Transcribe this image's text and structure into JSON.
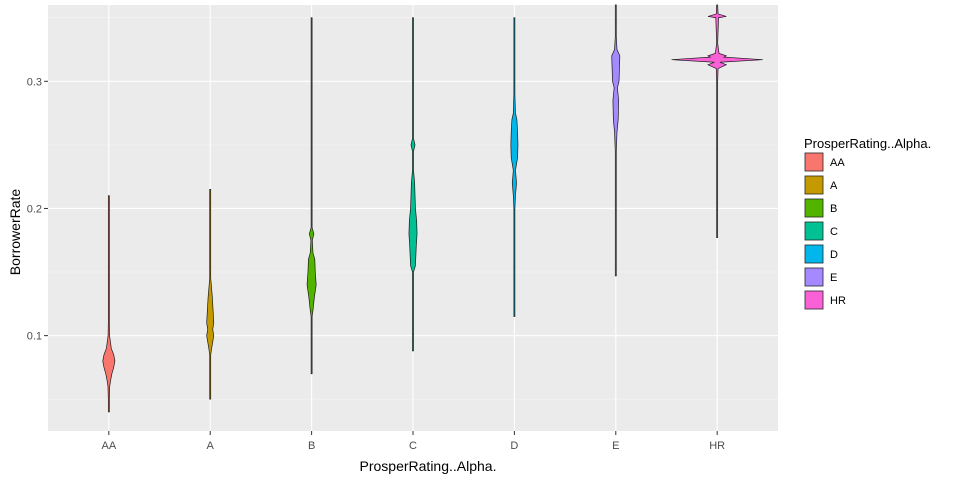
{
  "chart_data": {
    "type": "violin",
    "xlabel": "ProsperRating..Alpha.",
    "ylabel": "BorrowerRate",
    "ylim": [
      0.025,
      0.36
    ],
    "yticks": [
      0.1,
      0.2,
      0.3
    ],
    "ytick_labels": [
      "0.1",
      "0.2",
      "0.3"
    ],
    "grid": true,
    "legend": {
      "title": "ProsperRating..Alpha.",
      "position": "right"
    },
    "categories": [
      "AA",
      "A",
      "B",
      "C",
      "D",
      "E",
      "HR"
    ],
    "series": [
      {
        "name": "AA",
        "color": "#F8766D",
        "min": 0.04,
        "max": 0.21,
        "width": 0.12,
        "density": [
          [
            0.04,
            0.0
          ],
          [
            0.05,
            0.06
          ],
          [
            0.06,
            0.14
          ],
          [
            0.065,
            0.3
          ],
          [
            0.07,
            0.5
          ],
          [
            0.075,
            0.8
          ],
          [
            0.08,
            1.0
          ],
          [
            0.085,
            0.8
          ],
          [
            0.09,
            0.4
          ],
          [
            0.1,
            0.12
          ],
          [
            0.11,
            0.04
          ],
          [
            0.125,
            0.02
          ],
          [
            0.21,
            0.0
          ]
        ]
      },
      {
        "name": "A",
        "color": "#C49A00",
        "min": 0.05,
        "max": 0.215,
        "width": 0.07,
        "density": [
          [
            0.05,
            0.0
          ],
          [
            0.085,
            0.04
          ],
          [
            0.09,
            0.4
          ],
          [
            0.1,
            1.0
          ],
          [
            0.105,
            0.7
          ],
          [
            0.11,
            1.0
          ],
          [
            0.12,
            0.8
          ],
          [
            0.13,
            0.6
          ],
          [
            0.14,
            0.3
          ],
          [
            0.145,
            0.05
          ],
          [
            0.215,
            0.0
          ]
        ]
      },
      {
        "name": "B",
        "color": "#53B400",
        "min": 0.07,
        "max": 0.35,
        "width": 0.09,
        "density": [
          [
            0.07,
            0.0
          ],
          [
            0.115,
            0.05
          ],
          [
            0.12,
            0.3
          ],
          [
            0.13,
            0.6
          ],
          [
            0.14,
            1.0
          ],
          [
            0.15,
            0.8
          ],
          [
            0.16,
            0.7
          ],
          [
            0.165,
            0.3
          ],
          [
            0.175,
            0.15
          ],
          [
            0.18,
            0.5
          ],
          [
            0.185,
            0.1
          ],
          [
            0.2,
            0.05
          ],
          [
            0.215,
            0.02
          ],
          [
            0.35,
            0.0
          ]
        ]
      },
      {
        "name": "C",
        "color": "#00C094",
        "min": 0.088,
        "max": 0.35,
        "width": 0.08,
        "density": [
          [
            0.088,
            0.0
          ],
          [
            0.15,
            0.04
          ],
          [
            0.155,
            0.6
          ],
          [
            0.17,
            0.8
          ],
          [
            0.18,
            1.0
          ],
          [
            0.19,
            0.9
          ],
          [
            0.2,
            0.6
          ],
          [
            0.22,
            0.4
          ],
          [
            0.23,
            0.05
          ],
          [
            0.245,
            0.1
          ],
          [
            0.25,
            0.5
          ],
          [
            0.255,
            0.05
          ],
          [
            0.35,
            0.0
          ]
        ]
      },
      {
        "name": "D",
        "color": "#00B6EB",
        "min": 0.115,
        "max": 0.35,
        "width": 0.07,
        "density": [
          [
            0.115,
            0.0
          ],
          [
            0.2,
            0.04
          ],
          [
            0.21,
            0.3
          ],
          [
            0.22,
            0.6
          ],
          [
            0.23,
            0.3
          ],
          [
            0.24,
            0.9
          ],
          [
            0.25,
            1.0
          ],
          [
            0.26,
            0.9
          ],
          [
            0.27,
            0.7
          ],
          [
            0.275,
            0.3
          ],
          [
            0.29,
            0.05
          ],
          [
            0.35,
            0.0
          ]
        ]
      },
      {
        "name": "E",
        "color": "#A58AFF",
        "min": 0.147,
        "max": 0.36,
        "width": 0.08,
        "density": [
          [
            0.147,
            0.0
          ],
          [
            0.245,
            0.04
          ],
          [
            0.26,
            0.3
          ],
          [
            0.27,
            0.6
          ],
          [
            0.285,
            0.7
          ],
          [
            0.295,
            0.4
          ],
          [
            0.3,
            0.8
          ],
          [
            0.31,
            0.9
          ],
          [
            0.32,
            1.0
          ],
          [
            0.325,
            0.3
          ],
          [
            0.335,
            0.05
          ],
          [
            0.36,
            0.0
          ]
        ]
      },
      {
        "name": "HR",
        "color": "#FB61D7",
        "min": 0.177,
        "max": 0.36,
        "width": 0.9,
        "density": [
          [
            0.177,
            0.0
          ],
          [
            0.29,
            0.005
          ],
          [
            0.3,
            0.01
          ],
          [
            0.31,
            0.02
          ],
          [
            0.313,
            0.2
          ],
          [
            0.315,
            0.06
          ],
          [
            0.317,
            1.0
          ],
          [
            0.319,
            0.15
          ],
          [
            0.32,
            0.2
          ],
          [
            0.322,
            0.04
          ],
          [
            0.33,
            0.01
          ],
          [
            0.35,
            0.03
          ],
          [
            0.351,
            0.2
          ],
          [
            0.353,
            0.02
          ],
          [
            0.36,
            0.0
          ]
        ]
      }
    ]
  }
}
